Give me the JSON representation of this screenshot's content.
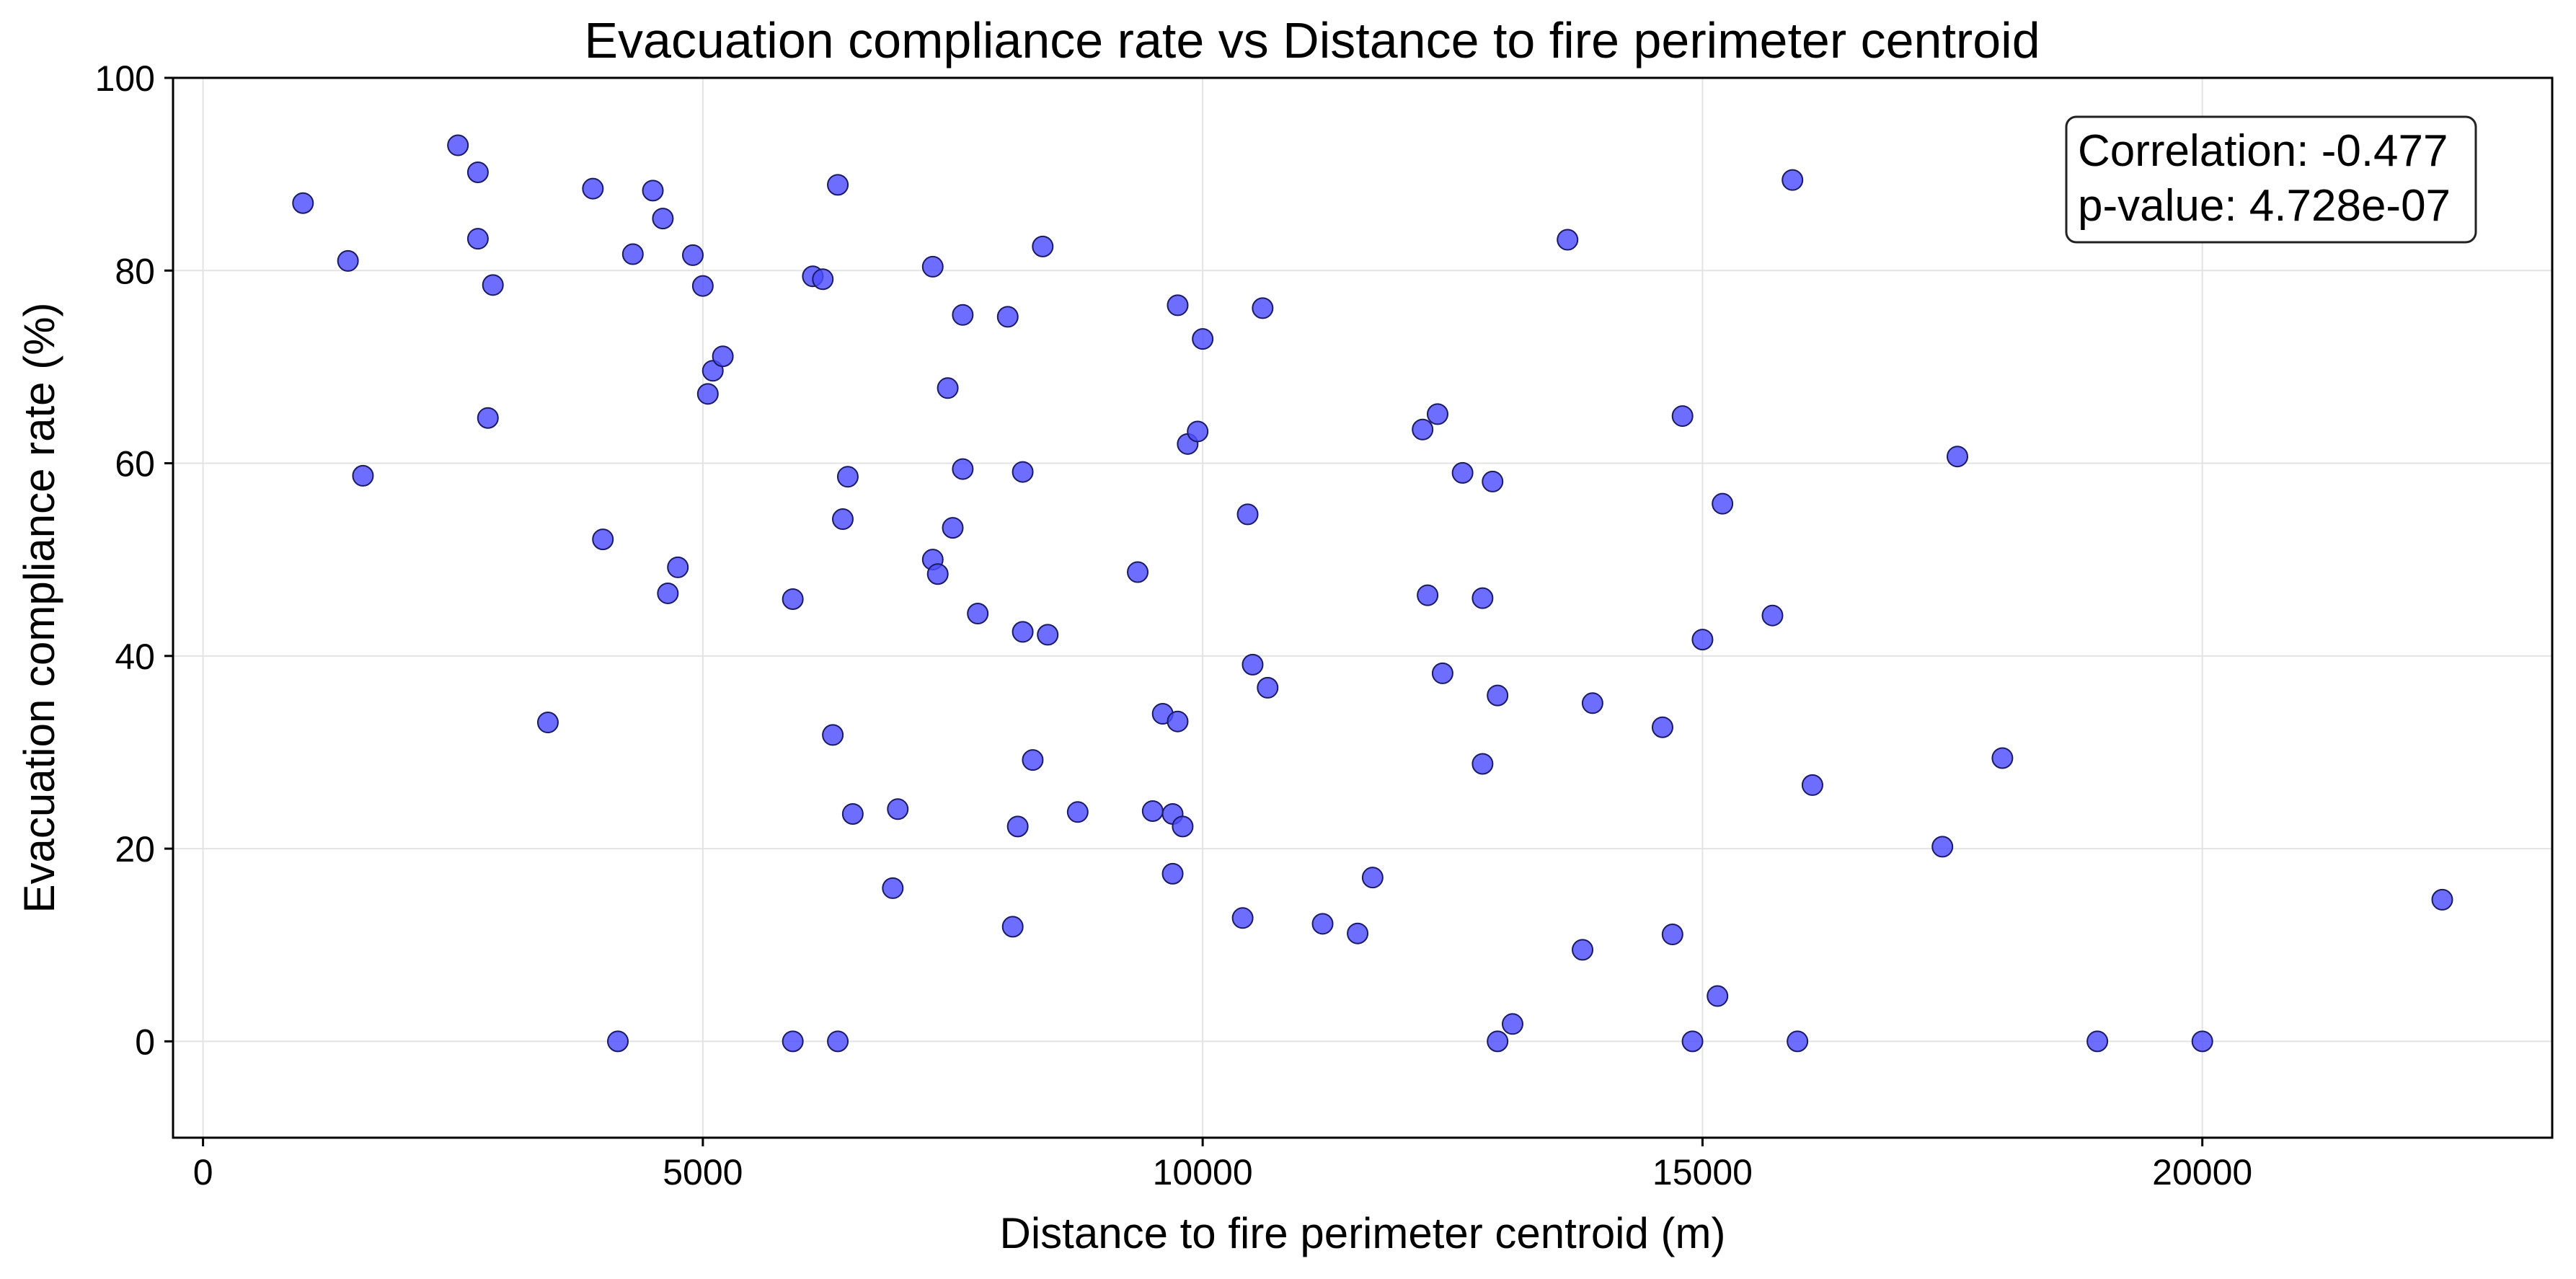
{
  "chart_data": {
    "type": "scatter",
    "title": "Evacuation compliance rate vs Distance to fire perimeter centroid",
    "xlabel": "Distance to fire perimeter centroid (m)",
    "ylabel": "Evacuation compliance rate (%)",
    "xlim": [
      -300,
      23500
    ],
    "ylim": [
      -10,
      100
    ],
    "xticks": [
      0,
      5000,
      10000,
      15000,
      20000
    ],
    "yticks": [
      0,
      20,
      40,
      60,
      80,
      100
    ],
    "grid": true,
    "marker_color": "#4d4dff",
    "marker_edge_color": "#1a1a66",
    "annotation": {
      "line1": "Correlation: -0.477",
      "line2": "p-value: 4.728e-07",
      "placement": "top-right"
    },
    "points": [
      {
        "x": 1000,
        "y": 87
      },
      {
        "x": 1450,
        "y": 81
      },
      {
        "x": 1600,
        "y": 58.7
      },
      {
        "x": 2550,
        "y": 93
      },
      {
        "x": 2750,
        "y": 90.2
      },
      {
        "x": 2750,
        "y": 83.3
      },
      {
        "x": 2850,
        "y": 64.7
      },
      {
        "x": 2900,
        "y": 78.5
      },
      {
        "x": 3450,
        "y": 33.1
      },
      {
        "x": 3900,
        "y": 88.5
      },
      {
        "x": 4000,
        "y": 52.1
      },
      {
        "x": 4150,
        "y": 0
      },
      {
        "x": 4300,
        "y": 81.7
      },
      {
        "x": 4500,
        "y": 88.3
      },
      {
        "x": 4600,
        "y": 85.4
      },
      {
        "x": 4650,
        "y": 46.5
      },
      {
        "x": 4750,
        "y": 49.2
      },
      {
        "x": 4900,
        "y": 81.6
      },
      {
        "x": 5000,
        "y": 78.4
      },
      {
        "x": 5050,
        "y": 67.2
      },
      {
        "x": 5100,
        "y": 69.6
      },
      {
        "x": 5200,
        "y": 71.1
      },
      {
        "x": 5900,
        "y": 45.9
      },
      {
        "x": 5900,
        "y": 0
      },
      {
        "x": 6100,
        "y": 79.4
      },
      {
        "x": 6200,
        "y": 79.1
      },
      {
        "x": 6300,
        "y": 31.8
      },
      {
        "x": 6350,
        "y": 88.9
      },
      {
        "x": 6350,
        "y": 0
      },
      {
        "x": 6400,
        "y": 54.2
      },
      {
        "x": 6450,
        "y": 58.6
      },
      {
        "x": 6500,
        "y": 23.6
      },
      {
        "x": 6900,
        "y": 15.9
      },
      {
        "x": 6950,
        "y": 24.1
      },
      {
        "x": 7300,
        "y": 80.4
      },
      {
        "x": 7300,
        "y": 50
      },
      {
        "x": 7350,
        "y": 48.5
      },
      {
        "x": 7450,
        "y": 67.8
      },
      {
        "x": 7500,
        "y": 53.3
      },
      {
        "x": 7600,
        "y": 75.4
      },
      {
        "x": 7600,
        "y": 59.4
      },
      {
        "x": 7750,
        "y": 44.4
      },
      {
        "x": 8050,
        "y": 75.2
      },
      {
        "x": 8100,
        "y": 11.9
      },
      {
        "x": 8150,
        "y": 22.3
      },
      {
        "x": 8200,
        "y": 59.1
      },
      {
        "x": 8200,
        "y": 42.5
      },
      {
        "x": 8300,
        "y": 29.2
      },
      {
        "x": 8400,
        "y": 82.5
      },
      {
        "x": 8450,
        "y": 42.2
      },
      {
        "x": 8750,
        "y": 23.8
      },
      {
        "x": 9350,
        "y": 48.7
      },
      {
        "x": 9500,
        "y": 23.9
      },
      {
        "x": 9600,
        "y": 34
      },
      {
        "x": 9700,
        "y": 23.6
      },
      {
        "x": 9700,
        "y": 17.4
      },
      {
        "x": 9750,
        "y": 76.4
      },
      {
        "x": 9750,
        "y": 33.2
      },
      {
        "x": 9800,
        "y": 22.3
      },
      {
        "x": 9850,
        "y": 62
      },
      {
        "x": 9950,
        "y": 63.3
      },
      {
        "x": 10000,
        "y": 72.9
      },
      {
        "x": 10400,
        "y": 12.8
      },
      {
        "x": 10450,
        "y": 54.7
      },
      {
        "x": 10500,
        "y": 39.1
      },
      {
        "x": 10600,
        "y": 76.1
      },
      {
        "x": 10650,
        "y": 36.7
      },
      {
        "x": 11200,
        "y": 12.2
      },
      {
        "x": 11550,
        "y": 11.2
      },
      {
        "x": 11700,
        "y": 17
      },
      {
        "x": 12200,
        "y": 63.5
      },
      {
        "x": 12250,
        "y": 46.3
      },
      {
        "x": 12350,
        "y": 65.1
      },
      {
        "x": 12400,
        "y": 38.2
      },
      {
        "x": 12600,
        "y": 59
      },
      {
        "x": 12800,
        "y": 46
      },
      {
        "x": 12800,
        "y": 28.8
      },
      {
        "x": 12900,
        "y": 58.1
      },
      {
        "x": 12950,
        "y": 35.9
      },
      {
        "x": 12950,
        "y": 0
      },
      {
        "x": 13100,
        "y": 1.8
      },
      {
        "x": 13650,
        "y": 83.2
      },
      {
        "x": 13800,
        "y": 9.5
      },
      {
        "x": 13900,
        "y": 35.1
      },
      {
        "x": 14600,
        "y": 32.6
      },
      {
        "x": 14700,
        "y": 11.1
      },
      {
        "x": 14800,
        "y": 64.9
      },
      {
        "x": 14900,
        "y": 0
      },
      {
        "x": 15000,
        "y": 41.7
      },
      {
        "x": 15150,
        "y": 4.7
      },
      {
        "x": 15200,
        "y": 55.8
      },
      {
        "x": 15700,
        "y": 44.2
      },
      {
        "x": 15900,
        "y": 89.4
      },
      {
        "x": 15950,
        "y": 0
      },
      {
        "x": 16100,
        "y": 26.6
      },
      {
        "x": 17400,
        "y": 20.2
      },
      {
        "x": 17550,
        "y": 60.7
      },
      {
        "x": 18000,
        "y": 29.4
      },
      {
        "x": 18950,
        "y": 0
      },
      {
        "x": 20000,
        "y": 0
      },
      {
        "x": 22400,
        "y": 14.7
      }
    ]
  }
}
